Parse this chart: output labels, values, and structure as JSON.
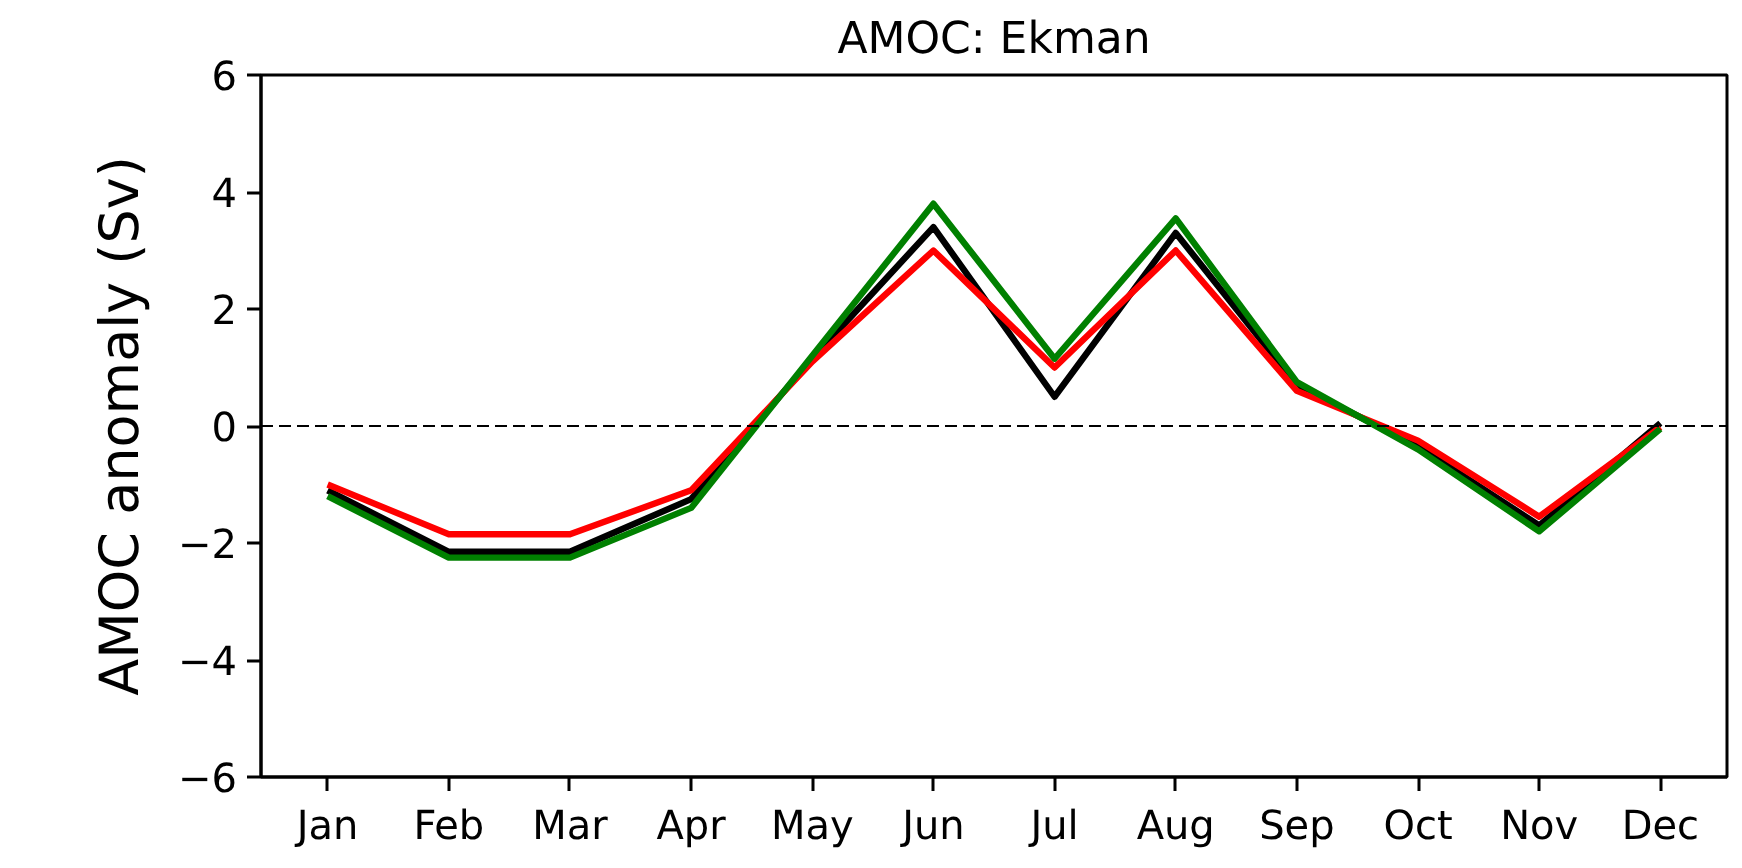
{
  "chart_data": {
    "type": "line",
    "title": "AMOC: Ekman",
    "ylabel": "AMOC anomaly (Sv)",
    "categories": [
      "Jan",
      "Feb",
      "Mar",
      "Apr",
      "May",
      "Jun",
      "Jul",
      "Aug",
      "Sep",
      "Oct",
      "Nov",
      "Dec"
    ],
    "series": [
      {
        "color": "#000000",
        "values": [
          -1.1,
          -2.15,
          -2.15,
          -1.25,
          1.15,
          3.4,
          0.5,
          3.3,
          0.7,
          -0.35,
          -1.7,
          0.05
        ]
      },
      {
        "color": "#ff0000",
        "values": [
          -1.0,
          -1.85,
          -1.85,
          -1.1,
          1.1,
          3.0,
          1.0,
          3.0,
          0.6,
          -0.25,
          -1.55,
          -0.02
        ]
      },
      {
        "color": "#008000",
        "values": [
          -1.2,
          -2.25,
          -2.25,
          -1.4,
          1.2,
          3.8,
          1.15,
          3.55,
          0.75,
          -0.4,
          -1.8,
          -0.05
        ]
      }
    ],
    "ylim": [
      -6,
      6
    ],
    "yticks": [
      {
        "value": -6,
        "label": "−6"
      },
      {
        "value": -4,
        "label": "−4"
      },
      {
        "value": -2,
        "label": "−2"
      },
      0,
      2,
      4,
      6
    ],
    "grid": false,
    "marker": "none",
    "line_style": "solid",
    "ref_lines": [
      {
        "axis": "y",
        "value": 0,
        "color": "#000000",
        "line_style": "dashed"
      }
    ]
  }
}
